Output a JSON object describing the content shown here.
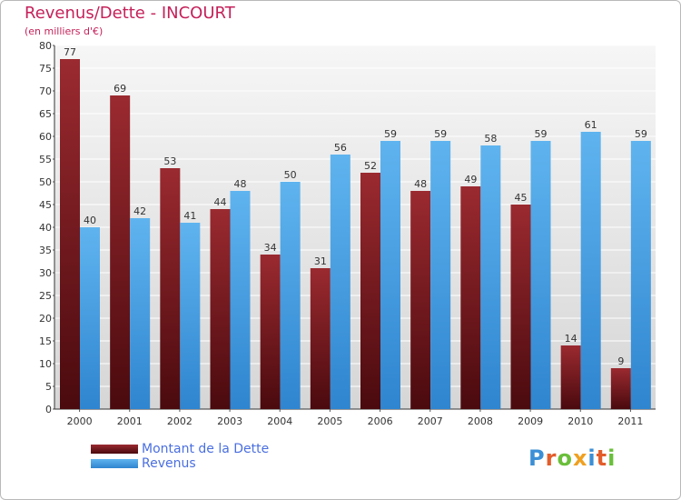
{
  "chart_data": {
    "type": "bar",
    "title": "Revenus/Dette - INCOURT",
    "subtitle": "(en milliers d'€)",
    "categories": [
      "2000",
      "2001",
      "2002",
      "2003",
      "2004",
      "2005",
      "2006",
      "2007",
      "2008",
      "2009",
      "2010",
      "2011"
    ],
    "series": [
      {
        "name": "Montant de la Dette",
        "values": [
          77,
          69,
          53,
          44,
          34,
          31,
          52,
          48,
          49,
          45,
          14,
          9
        ],
        "color": "#7a1a1e"
      },
      {
        "name": "Revenus",
        "values": [
          40,
          42,
          41,
          48,
          50,
          56,
          59,
          59,
          58,
          59,
          61,
          59
        ],
        "color": "#4da3e3"
      }
    ],
    "ylim": [
      0,
      80
    ],
    "yticks": [
      0,
      5,
      10,
      15,
      20,
      25,
      30,
      35,
      40,
      45,
      50,
      55,
      60,
      65,
      70,
      75,
      80
    ],
    "grid": true,
    "legend_position": "bottom-left"
  },
  "logo": {
    "text": "Proxiti",
    "letter_colors": [
      "#3b8fd6",
      "#e35d2b",
      "#6abf3a",
      "#f0a020",
      "#3b8fd6",
      "#e35d2b",
      "#6abf3a"
    ]
  },
  "colors": {
    "title": "#c5215a",
    "legend_text": "#4a6fe0"
  }
}
